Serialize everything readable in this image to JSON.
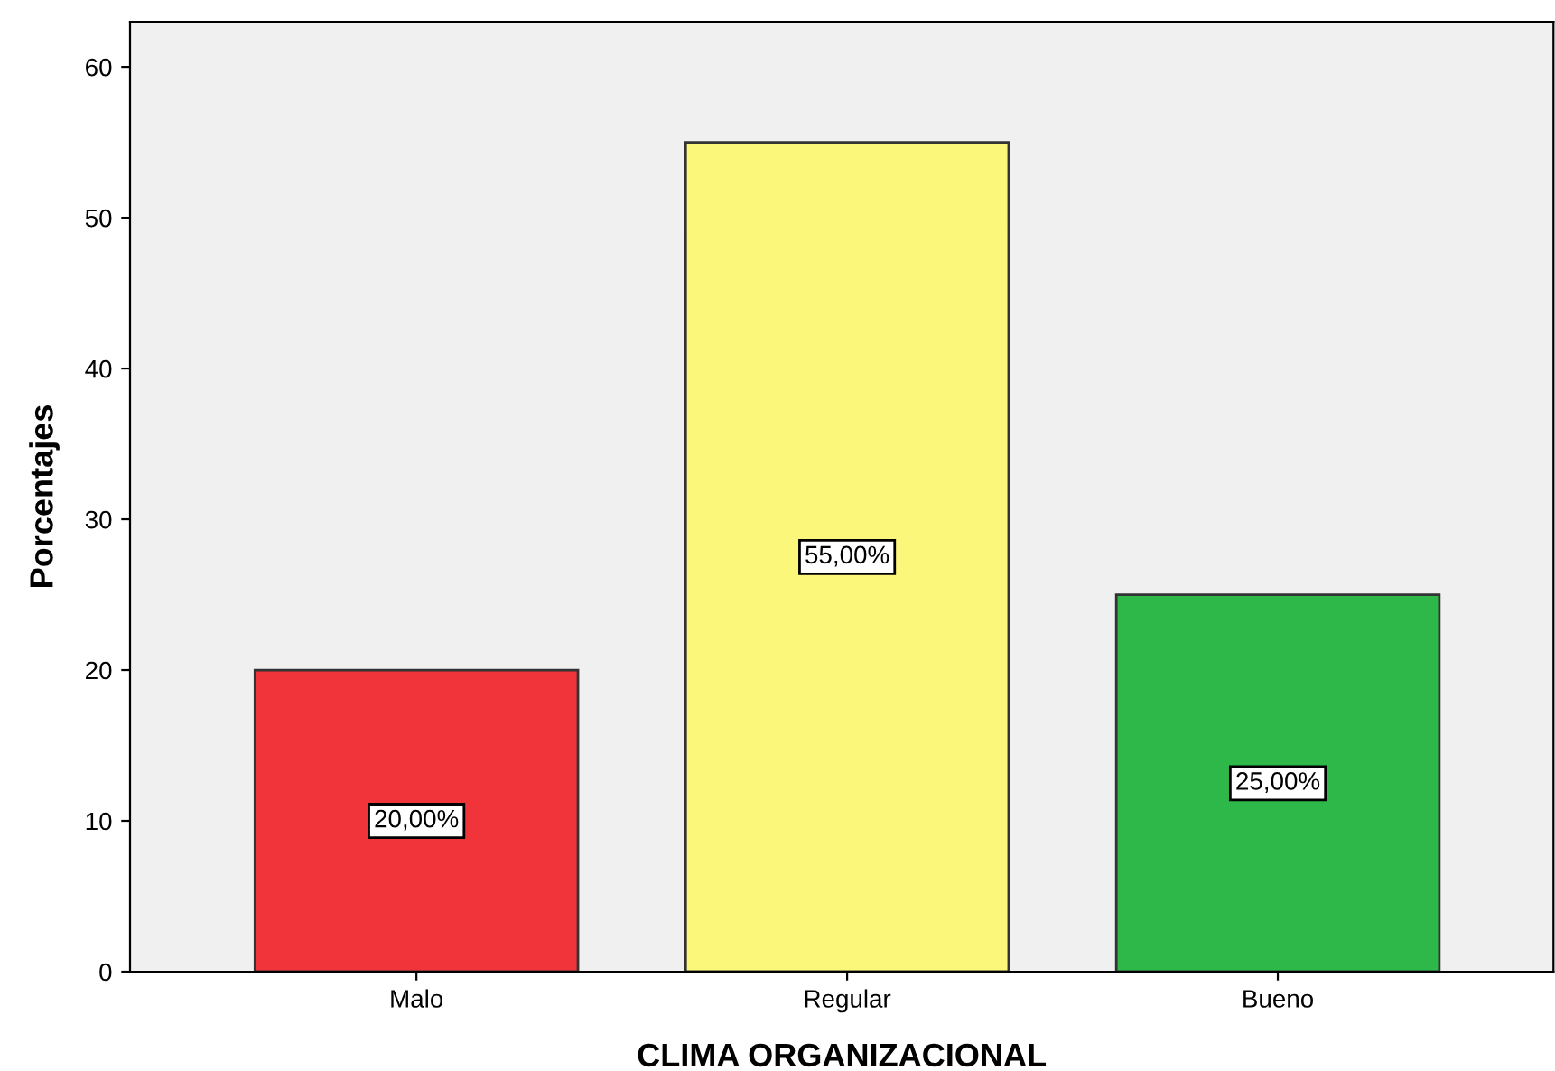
{
  "chart_data": {
    "type": "bar",
    "xlabel": "CLIMA ORGANIZACIONAL",
    "ylabel": "Porcentajes",
    "categories": [
      "Malo",
      "Regular",
      "Bueno"
    ],
    "values": [
      20,
      55,
      25
    ],
    "colors": [
      "#f0343a",
      "#fbf77a",
      "#2fb84a"
    ],
    "value_labels": [
      "20,00%",
      "55,00%",
      "25,00%"
    ],
    "ylim": [
      0,
      63
    ],
    "yticks": [
      0,
      10,
      20,
      30,
      40,
      50,
      60
    ],
    "grid": false,
    "legend": false
  }
}
